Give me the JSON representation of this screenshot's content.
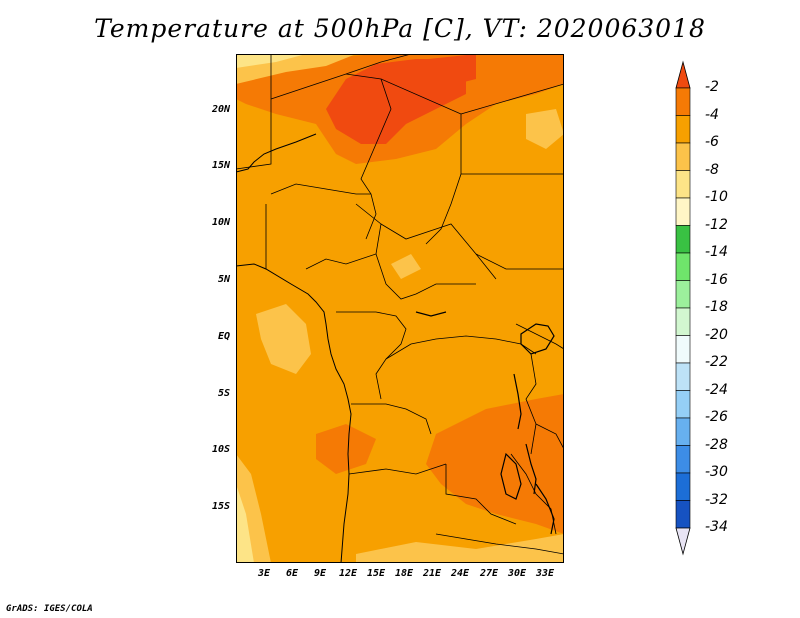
{
  "title": "Temperature at 500hPa [C], VT: 2020063018",
  "footer": "GrADS: IGES/COLA",
  "lat_labels": [
    "20N",
    "15N",
    "10N",
    "5N",
    "EQ",
    "5S",
    "10S",
    "15S"
  ],
  "lon_labels": [
    "3E",
    "6E",
    "9E",
    "12E",
    "15E",
    "18E",
    "21E",
    "24E",
    "27E",
    "30E",
    "33E"
  ],
  "colorbar": {
    "labels": [
      "-2",
      "-4",
      "-6",
      "-8",
      "-10",
      "-12",
      "-14",
      "-16",
      "-18",
      "-20",
      "-22",
      "-24",
      "-26",
      "-28",
      "-30",
      "-32",
      "-34"
    ],
    "colors": [
      "#f04a10",
      "#f57a05",
      "#f7a000",
      "#fcc34a",
      "#fde487",
      "#fff6c6",
      "#39c143",
      "#6fe56b",
      "#9cf09c",
      "#d2f7d0",
      "#f0fbfc",
      "#bde2f7",
      "#95cff6",
      "#67b0ef",
      "#3d8de6",
      "#1c6ed7",
      "#1652c1",
      "#0f44ab",
      "#0b1b75"
    ]
  }
}
